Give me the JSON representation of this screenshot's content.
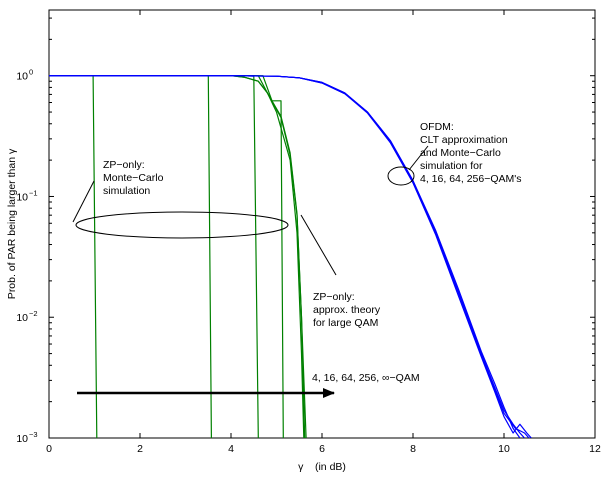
{
  "chart_data": {
    "type": "line",
    "xlabel": "γ    (in dB)",
    "ylabel": "Prob. of PAR being larger than γ",
    "xlim": [
      0,
      12
    ],
    "ylim": [
      0.001,
      3.5
    ],
    "yscale": "log",
    "grid": false,
    "xticks": [
      {
        "v": 0,
        "label": "0"
      },
      {
        "v": 2,
        "label": "2"
      },
      {
        "v": 4,
        "label": "4"
      },
      {
        "v": 6,
        "label": "6"
      },
      {
        "v": 8,
        "label": "8"
      },
      {
        "v": 10,
        "label": "10"
      },
      {
        "v": 12,
        "label": "12"
      }
    ],
    "yticks": [
      {
        "v": 1,
        "base": "10",
        "exp": "0"
      },
      {
        "v": 0.1,
        "base": "10",
        "exp": "−1"
      },
      {
        "v": 0.01,
        "base": "10",
        "exp": "−2"
      },
      {
        "v": 0.001,
        "base": "10",
        "exp": "−3"
      }
    ],
    "colors": {
      "ofdm": "#0000ff",
      "zp": "#008000",
      "axis": "#000000"
    },
    "ofdm_curves": [
      {
        "x": [
          0,
          4,
          5,
          5.5,
          6,
          6.5,
          7,
          7.5,
          8,
          8.5,
          9,
          9.5,
          9.8,
          10,
          10.2,
          10.35
        ],
        "y": [
          1,
          1,
          0.99,
          0.96,
          0.88,
          0.72,
          0.5,
          0.29,
          0.135,
          0.052,
          0.017,
          0.0052,
          0.0028,
          0.0018,
          0.0012,
          0.001
        ]
      },
      {
        "x": [
          0,
          4,
          5,
          5.5,
          6,
          6.5,
          7,
          7.5,
          8,
          8.5,
          9,
          9.5,
          9.8,
          10,
          10.2,
          10.35,
          10.45
        ],
        "y": [
          1,
          1,
          0.99,
          0.96,
          0.88,
          0.72,
          0.5,
          0.29,
          0.135,
          0.05,
          0.016,
          0.005,
          0.0026,
          0.0017,
          0.0013,
          0.0011,
          0.001
        ]
      },
      {
        "x": [
          0,
          4,
          5,
          5.5,
          6,
          6.5,
          7,
          7.5,
          8,
          8.5,
          9,
          9.5,
          9.8,
          10,
          10.25,
          10.45,
          10.55
        ],
        "y": [
          1,
          1,
          0.99,
          0.96,
          0.87,
          0.71,
          0.5,
          0.28,
          0.13,
          0.049,
          0.016,
          0.0049,
          0.0025,
          0.0016,
          0.0012,
          0.0011,
          0.001
        ]
      },
      {
        "x": [
          0,
          4,
          5,
          5.5,
          6,
          6.5,
          7,
          7.5,
          8,
          8.5,
          9,
          9.5,
          9.8,
          10,
          10.2,
          10.35,
          10.5,
          10.6
        ],
        "y": [
          1,
          1,
          0.99,
          0.96,
          0.87,
          0.71,
          0.49,
          0.28,
          0.13,
          0.048,
          0.015,
          0.0047,
          0.0024,
          0.0015,
          0.0011,
          0.0013,
          0.0011,
          0.001
        ]
      }
    ],
    "zp_curves": [
      {
        "x": [
          0,
          4,
          4.3,
          4.6,
          4.8,
          5.1,
          5.3,
          5.45,
          5.55,
          5.65
        ],
        "y": [
          1,
          1,
          0.97,
          0.9,
          0.72,
          0.45,
          0.22,
          0.07,
          0.01,
          0.001
        ]
      },
      {
        "x": [
          0,
          4,
          4.3,
          4.6,
          4.8,
          5.1,
          5.3,
          5.45,
          5.55,
          5.62
        ],
        "y": [
          1,
          1,
          0.97,
          0.9,
          0.72,
          0.46,
          0.23,
          0.072,
          0.01,
          0.001
        ]
      },
      {
        "x": [
          0,
          0.97,
          1.05
        ],
        "y": [
          1,
          1,
          0.001
        ]
      },
      {
        "x": [
          0,
          3.5,
          3.57
        ],
        "y": [
          1,
          1,
          0.001
        ]
      },
      {
        "x": [
          0,
          4.5,
          4.6
        ],
        "y": [
          1,
          1,
          0.001
        ]
      },
      {
        "x": [
          0,
          4.7,
          4.9,
          5.1,
          5.15
        ],
        "y": [
          1,
          1,
          0.62,
          0.62,
          0.001
        ]
      },
      {
        "x": [
          0,
          4.6,
          4.8,
          5.0,
          5.3,
          5.45,
          5.55,
          5.6
        ],
        "y": [
          1,
          1,
          0.72,
          0.5,
          0.2,
          0.05,
          0.005,
          0.001
        ]
      }
    ],
    "annotations": {
      "ofdm_label": [
        "OFDM:",
        "CLT approximation",
        "and Monte−Carlo",
        "simulation  for",
        "4, 16, 64, 256−QAM's"
      ],
      "zp_mc_label": [
        "ZP−only:",
        "Monte−Carlo",
        "simulation"
      ],
      "zp_theory_label": [
        "ZP−only:",
        "approx. theory",
        "for large QAM"
      ],
      "arrow_label": "4, 16, 64, 256, ∞−QAM"
    }
  }
}
